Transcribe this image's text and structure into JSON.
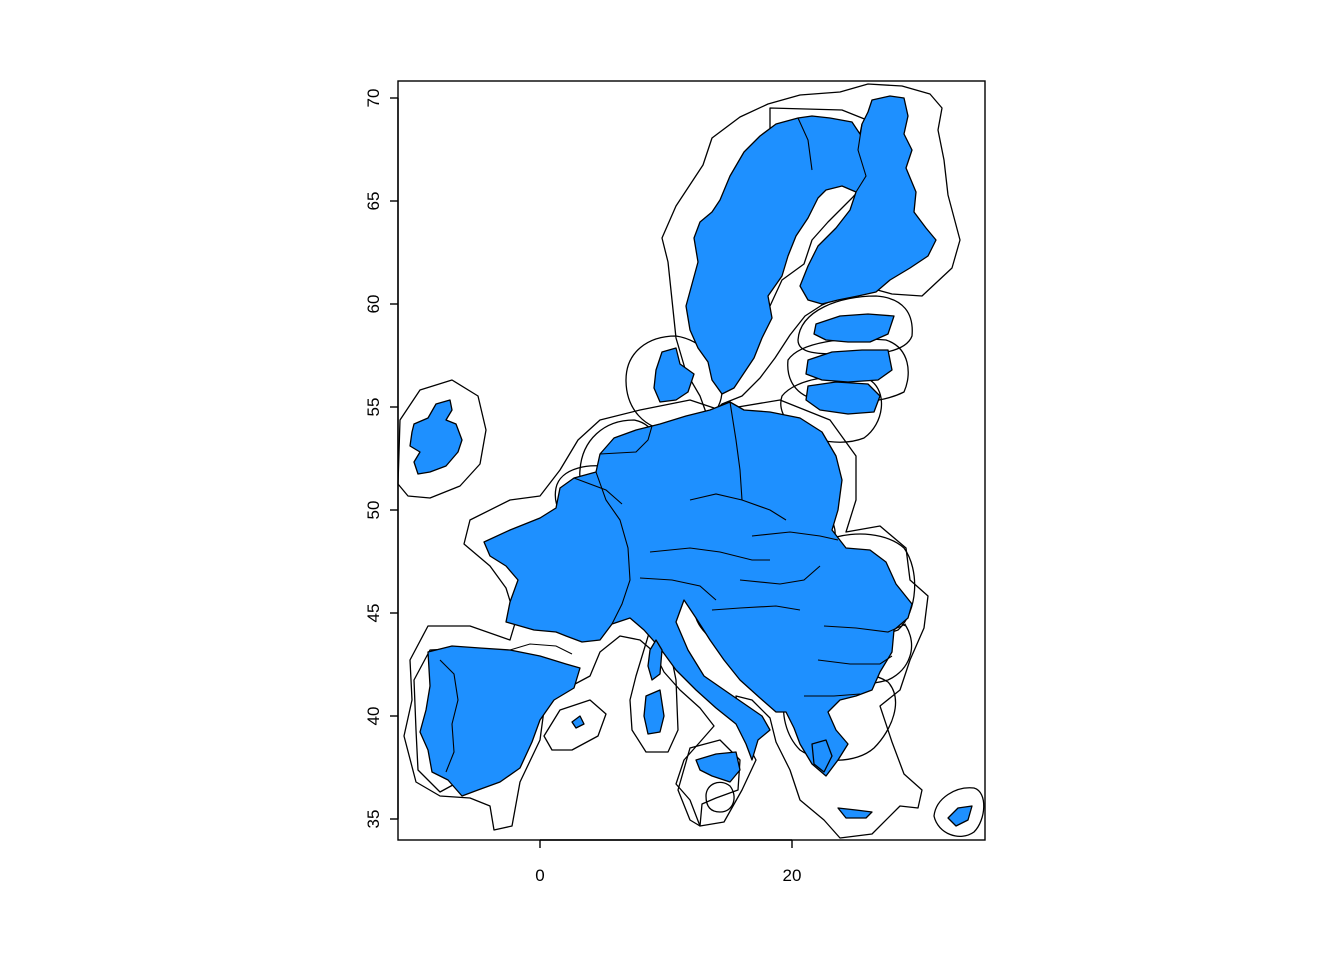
{
  "map": {
    "fill_color": "#1E90FF",
    "stroke_color": "#000000",
    "background": "#FFFFFF",
    "xlim": [
      -11.5,
      35.5
    ],
    "ylim": [
      34,
      70.8
    ],
    "x_ticks": [
      {
        "value": 0,
        "label": "0"
      },
      {
        "value": 20,
        "label": "20"
      }
    ],
    "y_ticks": [
      {
        "value": 35,
        "label": "35"
      },
      {
        "value": 40,
        "label": "40"
      },
      {
        "value": 45,
        "label": "45"
      },
      {
        "value": 50,
        "label": "50"
      },
      {
        "value": 55,
        "label": "55"
      },
      {
        "value": 60,
        "label": "60"
      },
      {
        "value": 65,
        "label": "65"
      },
      {
        "value": 70,
        "label": "70"
      }
    ]
  }
}
